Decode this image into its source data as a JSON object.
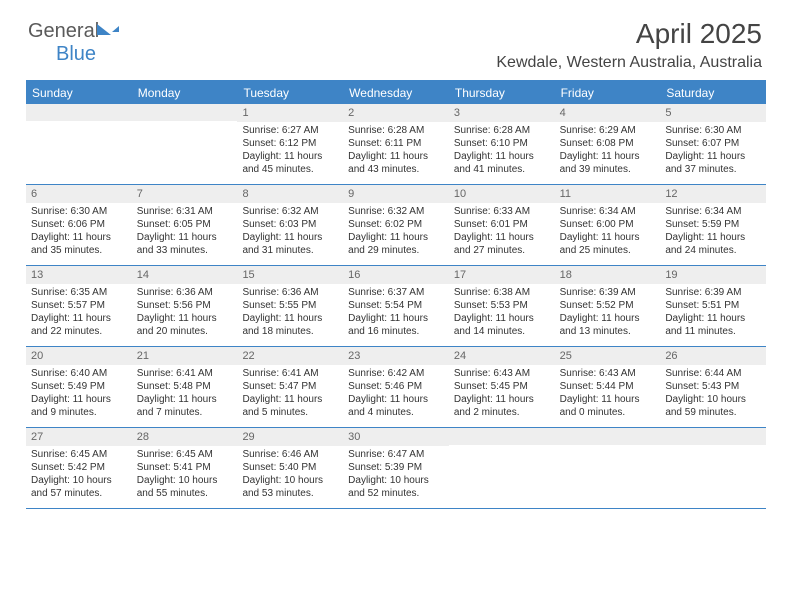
{
  "logo": {
    "word1": "General",
    "word2": "Blue"
  },
  "title": "April 2025",
  "subtitle": "Kewdale, Western Australia, Australia",
  "colors": {
    "accent": "#3e84c6",
    "daynum_bg": "#eeeeee",
    "text": "#333333"
  },
  "weekdays": [
    "Sunday",
    "Monday",
    "Tuesday",
    "Wednesday",
    "Thursday",
    "Friday",
    "Saturday"
  ],
  "weeks": [
    [
      {
        "num": "",
        "lines": []
      },
      {
        "num": "",
        "lines": []
      },
      {
        "num": "1",
        "lines": [
          "Sunrise: 6:27 AM",
          "Sunset: 6:12 PM",
          "Daylight: 11 hours and 45 minutes."
        ]
      },
      {
        "num": "2",
        "lines": [
          "Sunrise: 6:28 AM",
          "Sunset: 6:11 PM",
          "Daylight: 11 hours and 43 minutes."
        ]
      },
      {
        "num": "3",
        "lines": [
          "Sunrise: 6:28 AM",
          "Sunset: 6:10 PM",
          "Daylight: 11 hours and 41 minutes."
        ]
      },
      {
        "num": "4",
        "lines": [
          "Sunrise: 6:29 AM",
          "Sunset: 6:08 PM",
          "Daylight: 11 hours and 39 minutes."
        ]
      },
      {
        "num": "5",
        "lines": [
          "Sunrise: 6:30 AM",
          "Sunset: 6:07 PM",
          "Daylight: 11 hours and 37 minutes."
        ]
      }
    ],
    [
      {
        "num": "6",
        "lines": [
          "Sunrise: 6:30 AM",
          "Sunset: 6:06 PM",
          "Daylight: 11 hours and 35 minutes."
        ]
      },
      {
        "num": "7",
        "lines": [
          "Sunrise: 6:31 AM",
          "Sunset: 6:05 PM",
          "Daylight: 11 hours and 33 minutes."
        ]
      },
      {
        "num": "8",
        "lines": [
          "Sunrise: 6:32 AM",
          "Sunset: 6:03 PM",
          "Daylight: 11 hours and 31 minutes."
        ]
      },
      {
        "num": "9",
        "lines": [
          "Sunrise: 6:32 AM",
          "Sunset: 6:02 PM",
          "Daylight: 11 hours and 29 minutes."
        ]
      },
      {
        "num": "10",
        "lines": [
          "Sunrise: 6:33 AM",
          "Sunset: 6:01 PM",
          "Daylight: 11 hours and 27 minutes."
        ]
      },
      {
        "num": "11",
        "lines": [
          "Sunrise: 6:34 AM",
          "Sunset: 6:00 PM",
          "Daylight: 11 hours and 25 minutes."
        ]
      },
      {
        "num": "12",
        "lines": [
          "Sunrise: 6:34 AM",
          "Sunset: 5:59 PM",
          "Daylight: 11 hours and 24 minutes."
        ]
      }
    ],
    [
      {
        "num": "13",
        "lines": [
          "Sunrise: 6:35 AM",
          "Sunset: 5:57 PM",
          "Daylight: 11 hours and 22 minutes."
        ]
      },
      {
        "num": "14",
        "lines": [
          "Sunrise: 6:36 AM",
          "Sunset: 5:56 PM",
          "Daylight: 11 hours and 20 minutes."
        ]
      },
      {
        "num": "15",
        "lines": [
          "Sunrise: 6:36 AM",
          "Sunset: 5:55 PM",
          "Daylight: 11 hours and 18 minutes."
        ]
      },
      {
        "num": "16",
        "lines": [
          "Sunrise: 6:37 AM",
          "Sunset: 5:54 PM",
          "Daylight: 11 hours and 16 minutes."
        ]
      },
      {
        "num": "17",
        "lines": [
          "Sunrise: 6:38 AM",
          "Sunset: 5:53 PM",
          "Daylight: 11 hours and 14 minutes."
        ]
      },
      {
        "num": "18",
        "lines": [
          "Sunrise: 6:39 AM",
          "Sunset: 5:52 PM",
          "Daylight: 11 hours and 13 minutes."
        ]
      },
      {
        "num": "19",
        "lines": [
          "Sunrise: 6:39 AM",
          "Sunset: 5:51 PM",
          "Daylight: 11 hours and 11 minutes."
        ]
      }
    ],
    [
      {
        "num": "20",
        "lines": [
          "Sunrise: 6:40 AM",
          "Sunset: 5:49 PM",
          "Daylight: 11 hours and 9 minutes."
        ]
      },
      {
        "num": "21",
        "lines": [
          "Sunrise: 6:41 AM",
          "Sunset: 5:48 PM",
          "Daylight: 11 hours and 7 minutes."
        ]
      },
      {
        "num": "22",
        "lines": [
          "Sunrise: 6:41 AM",
          "Sunset: 5:47 PM",
          "Daylight: 11 hours and 5 minutes."
        ]
      },
      {
        "num": "23",
        "lines": [
          "Sunrise: 6:42 AM",
          "Sunset: 5:46 PM",
          "Daylight: 11 hours and 4 minutes."
        ]
      },
      {
        "num": "24",
        "lines": [
          "Sunrise: 6:43 AM",
          "Sunset: 5:45 PM",
          "Daylight: 11 hours and 2 minutes."
        ]
      },
      {
        "num": "25",
        "lines": [
          "Sunrise: 6:43 AM",
          "Sunset: 5:44 PM",
          "Daylight: 11 hours and 0 minutes."
        ]
      },
      {
        "num": "26",
        "lines": [
          "Sunrise: 6:44 AM",
          "Sunset: 5:43 PM",
          "Daylight: 10 hours and 59 minutes."
        ]
      }
    ],
    [
      {
        "num": "27",
        "lines": [
          "Sunrise: 6:45 AM",
          "Sunset: 5:42 PM",
          "Daylight: 10 hours and 57 minutes."
        ]
      },
      {
        "num": "28",
        "lines": [
          "Sunrise: 6:45 AM",
          "Sunset: 5:41 PM",
          "Daylight: 10 hours and 55 minutes."
        ]
      },
      {
        "num": "29",
        "lines": [
          "Sunrise: 6:46 AM",
          "Sunset: 5:40 PM",
          "Daylight: 10 hours and 53 minutes."
        ]
      },
      {
        "num": "30",
        "lines": [
          "Sunrise: 6:47 AM",
          "Sunset: 5:39 PM",
          "Daylight: 10 hours and 52 minutes."
        ]
      },
      {
        "num": "",
        "lines": []
      },
      {
        "num": "",
        "lines": []
      },
      {
        "num": "",
        "lines": []
      }
    ]
  ]
}
